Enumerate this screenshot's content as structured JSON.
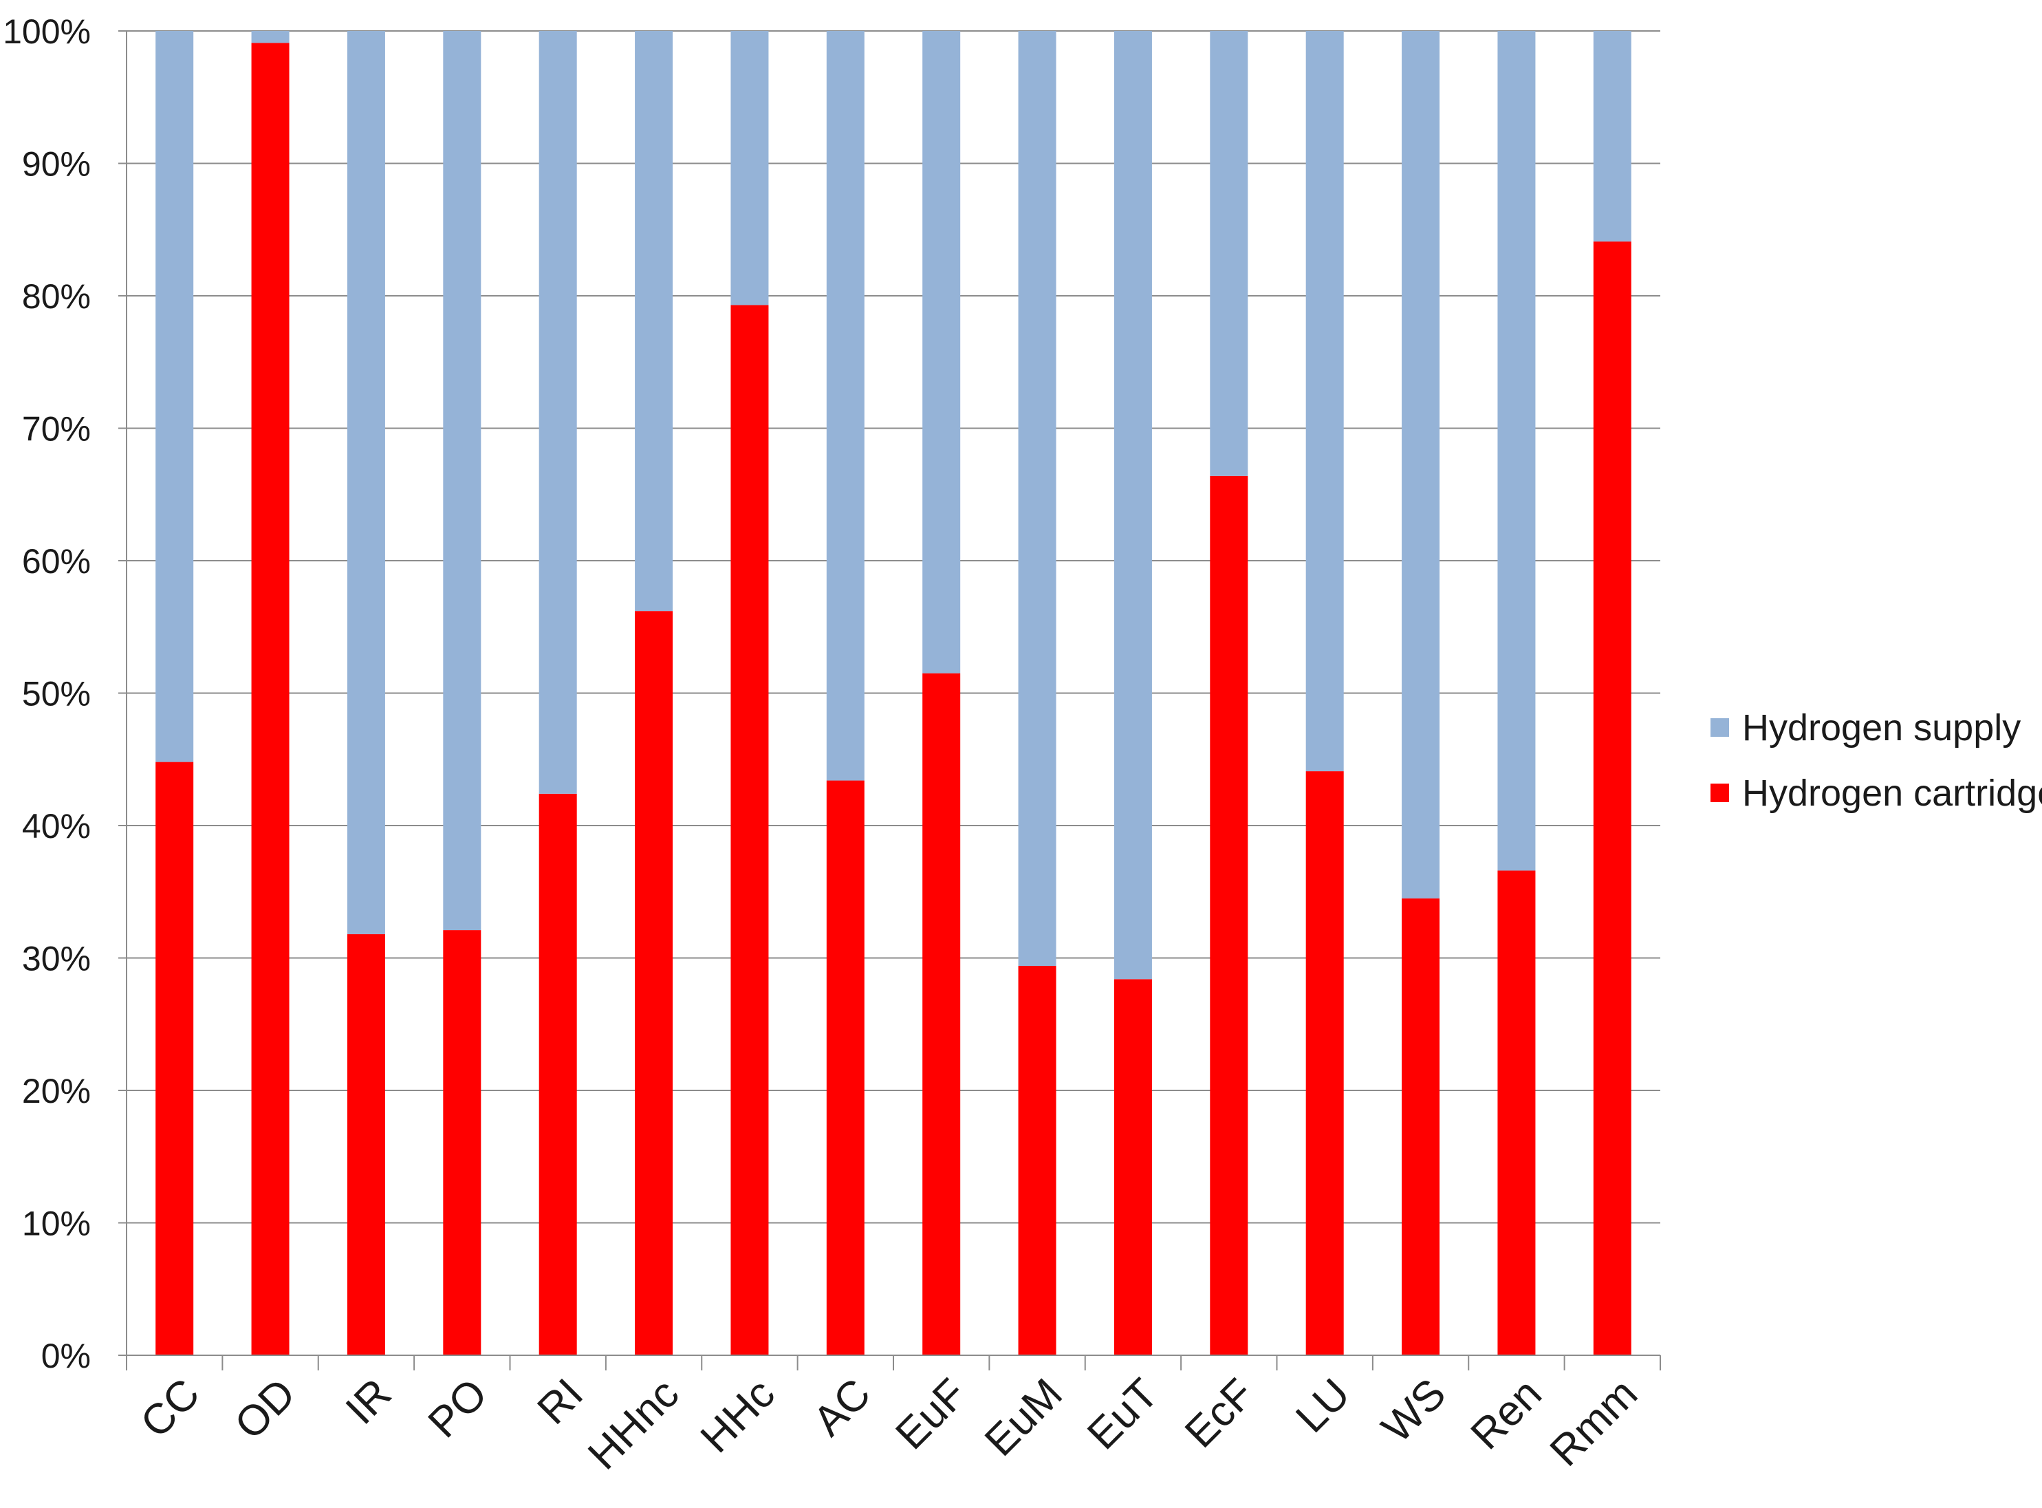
{
  "chart_data": {
    "type": "bar",
    "stacked": true,
    "percent_stacked": true,
    "title": "",
    "xlabel": "",
    "ylabel": "",
    "categories": [
      "CC",
      "OD",
      "IR",
      "PO",
      "RI",
      "HHnc",
      "HHc",
      "AC",
      "EuF",
      "EuM",
      "EuT",
      "EcF",
      "LU",
      "WS",
      "Ren",
      "Rmm"
    ],
    "series": [
      {
        "name": "Hydrogen cartridge",
        "color": "#ff0000",
        "values": [
          44.8,
          99.1,
          31.8,
          32.1,
          42.4,
          56.2,
          79.3,
          43.4,
          51.5,
          29.4,
          28.4,
          66.4,
          44.1,
          34.5,
          36.6,
          84.1
        ]
      },
      {
        "name": "Hydrogen supply",
        "color": "#95b3d7",
        "values": [
          55.2,
          0.9,
          68.2,
          67.9,
          57.6,
          43.8,
          20.7,
          56.6,
          48.5,
          70.6,
          71.6,
          33.6,
          55.9,
          65.5,
          63.4,
          15.9
        ]
      }
    ],
    "y_ticks": [
      "0%",
      "10%",
      "20%",
      "30%",
      "40%",
      "50%",
      "60%",
      "70%",
      "80%",
      "90%",
      "100%"
    ],
    "ylim": [
      0,
      100
    ],
    "grid": true,
    "legend_position": "right",
    "legend_order": [
      "Hydrogen supply",
      "Hydrogen cartridge"
    ],
    "x_tick_rotation": "diagonal"
  }
}
